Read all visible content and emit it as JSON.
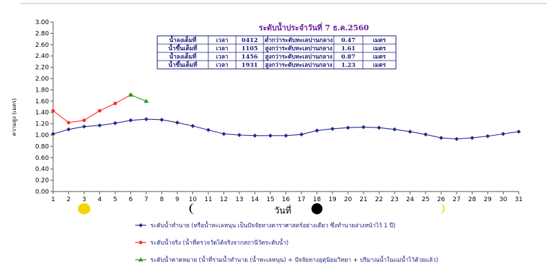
{
  "chart_data": {
    "type": "line",
    "title": "ระดับน้ำประจำวันที่ 7 ธ.ค.2560",
    "ylabel": "ความสูง (เมตร)",
    "xlabel": "วันที่",
    "ylim": [
      0,
      3.0
    ],
    "ytick_step": 0.2,
    "x": [
      1,
      2,
      3,
      4,
      5,
      6,
      7,
      8,
      9,
      10,
      11,
      12,
      13,
      14,
      15,
      16,
      17,
      18,
      19,
      20,
      21,
      22,
      23,
      24,
      25,
      26,
      27,
      28,
      29,
      30,
      31
    ],
    "grid": false,
    "series": [
      {
        "name": "ระดับน้ำทำนาย (หรือน้ำทะเลหนุน เป็นปัจจัยทางดาราศาสตร์อย่างเดียว ซึ่งทำนายล่วงหน้าไว้ 1 ปี)",
        "color": "#1f2a8a",
        "marker": "diamond",
        "x": [
          1,
          2,
          3,
          4,
          5,
          6,
          7,
          8,
          9,
          10,
          11,
          12,
          13,
          14,
          15,
          16,
          17,
          18,
          19,
          20,
          21,
          22,
          23,
          24,
          25,
          26,
          27,
          28,
          29,
          30,
          31
        ],
        "values": [
          1.02,
          1.1,
          1.15,
          1.17,
          1.21,
          1.26,
          1.28,
          1.27,
          1.22,
          1.16,
          1.09,
          1.02,
          1.0,
          0.99,
          0.99,
          0.99,
          1.01,
          1.08,
          1.11,
          1.13,
          1.14,
          1.13,
          1.1,
          1.06,
          1.01,
          0.95,
          0.93,
          0.95,
          0.98,
          1.02,
          1.06
        ]
      },
      {
        "name": "ระดับน้ำจริง (น้ำที่ตรวจวัดได้จริงจากสถานีวัดระดับน้ำ)",
        "color": "#ff2a2a",
        "marker": "circle",
        "x": [
          1,
          2,
          3,
          4,
          5,
          6
        ],
        "values": [
          1.43,
          1.22,
          1.26,
          1.43,
          1.56,
          1.71
        ]
      },
      {
        "name": "ระดับน้ำคาดหมาย (น้ำที่รวมน้ำทำนาย (น้ำทะเลหนุน) + ปัจจัยทางอุตุนิยมวิทยา + ปริมาณน้ำในแม่น้ำไว้ด้วยแล้ว)",
        "color": "#1e9e1e",
        "marker": "triangle",
        "x": [
          6,
          7
        ],
        "values": [
          1.71,
          1.6
        ]
      }
    ],
    "moon_phases": [
      {
        "day": 3,
        "phase": "full-moon",
        "color": "#f5d400"
      },
      {
        "day": 10,
        "phase": "last-quarter",
        "color": "#000000"
      },
      {
        "day": 18,
        "phase": "new-moon",
        "color": "#000000"
      },
      {
        "day": 26,
        "phase": "first-quarter",
        "color": "#f5d400"
      }
    ],
    "tide_table": {
      "rows": [
        {
          "type": "น้ำลงเต็มที่",
          "time_label": "เวลา",
          "time": "0412",
          "ref": "ต่ำกว่าระดับทะเลปานกลาง",
          "value": "0.47",
          "unit": "เมตร"
        },
        {
          "type": "น้ำขึ้นเต็มที่",
          "time_label": "เวลา",
          "time": "1105",
          "ref": "สูงกว่าระดับทะเลปานกลาง",
          "value": "1.61",
          "unit": "เมตร"
        },
        {
          "type": "น้ำลงเต็มที่",
          "time_label": "เวลา",
          "time": "1456",
          "ref": "สูงกว่าระดับทะเลปานกลาง",
          "value": "0.87",
          "unit": "เมตร"
        },
        {
          "type": "น้ำขึ้นเต็มที่",
          "time_label": "เวลา",
          "time": "1931",
          "ref": "สูงกว่าระดับทะเลปานกลาง",
          "value": "1.23",
          "unit": "เมตร"
        }
      ]
    }
  }
}
